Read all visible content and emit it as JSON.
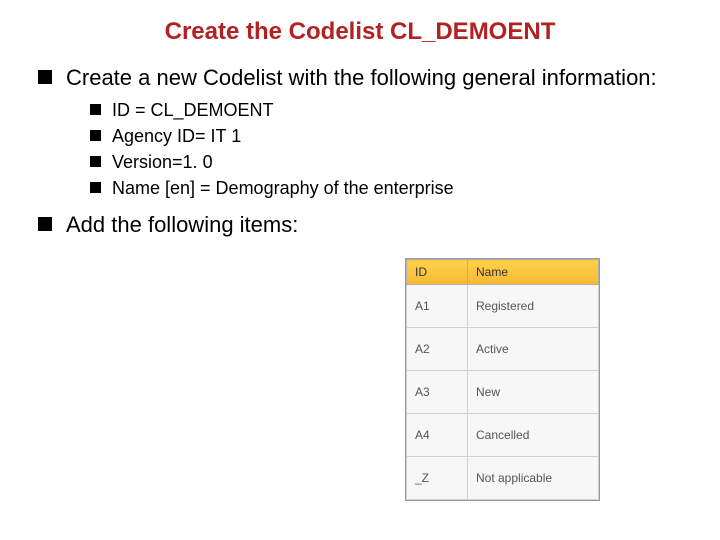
{
  "title": "Create the Codelist CL_DEMOENT",
  "intro": "Create a new Codelist with the following general information:",
  "general": {
    "id": "ID = CL_DEMOENT",
    "agency": "Agency ID= IT 1",
    "version": "Version=1. 0",
    "name": "Name [en] = Demography of the enterprise"
  },
  "add_items": "Add the following items:",
  "table": {
    "header_id": "ID",
    "header_name": "Name",
    "header_bg_top": "#ffd24a",
    "header_bg_bottom": "#f6b833",
    "border_color": "#b0b0b0",
    "cell_bg": "#f7f7f7",
    "text_color": "#555555",
    "font_size": 12,
    "col_id_width": 42,
    "col_name_width": 112,
    "rows": [
      {
        "id": "A1",
        "name": "Registered"
      },
      {
        "id": "A2",
        "name": "Active"
      },
      {
        "id": "A3",
        "name": "New"
      },
      {
        "id": "A4",
        "name": "Cancelled"
      },
      {
        "id": "_Z",
        "name": "Not applicable"
      }
    ]
  },
  "colors": {
    "title_color": "#b22222",
    "body_text": "#000000",
    "background": "#ffffff"
  }
}
